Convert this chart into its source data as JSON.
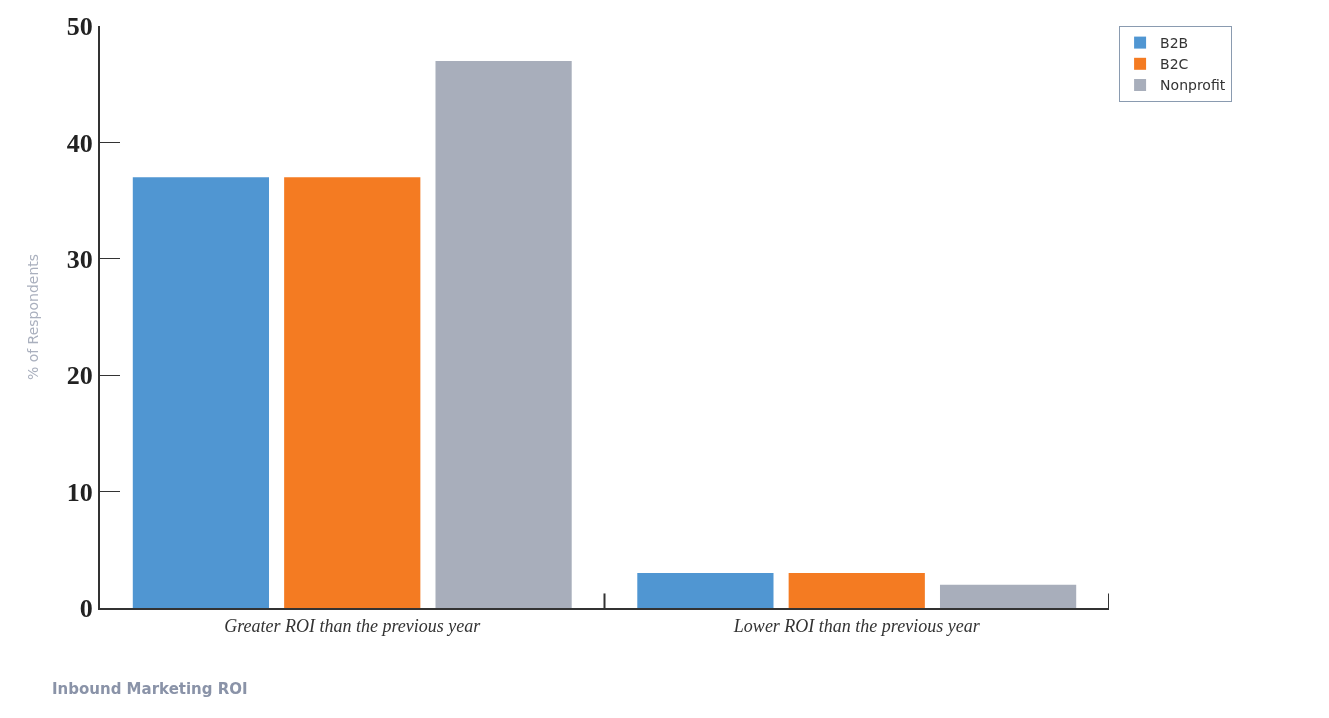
{
  "chart_data": {
    "type": "bar",
    "xlabel": "Inbound Marketing ROI",
    "ylabel": "% of Respondents",
    "categories": [
      "Greater ROI than the previous year",
      "Lower ROI than the previous year"
    ],
    "series": [
      {
        "name": "B2B",
        "color": "#5096d2",
        "values": [
          37,
          3
        ]
      },
      {
        "name": "B2C",
        "color": "#f47b22",
        "values": [
          37,
          3
        ]
      },
      {
        "name": "Nonprofit",
        "color": "#a8aebb",
        "values": [
          47,
          2
        ]
      }
    ],
    "ylim": [
      0,
      50
    ],
    "yticks": [
      0,
      10,
      20,
      30,
      40,
      50
    ],
    "legend": "top right"
  }
}
